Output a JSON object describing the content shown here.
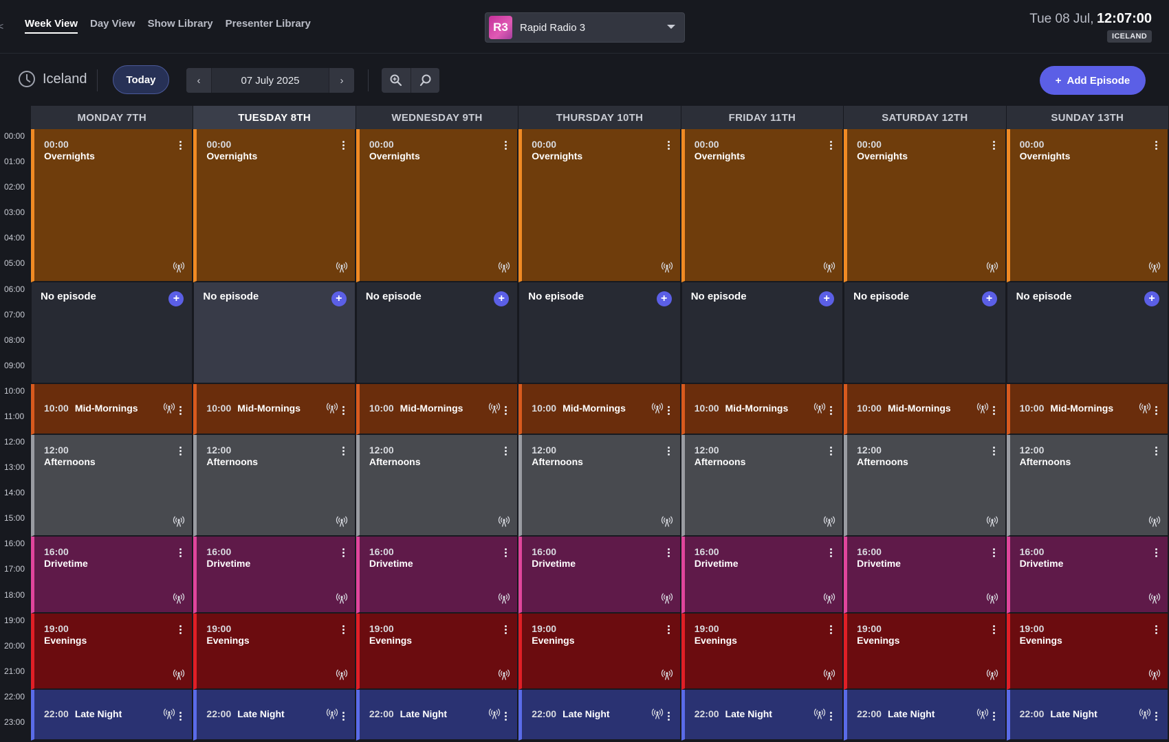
{
  "nav": {
    "edge_mark": "<",
    "tabs": [
      {
        "label": "Week View",
        "active": true
      },
      {
        "label": "Day View",
        "active": false
      },
      {
        "label": "Show Library",
        "active": false
      },
      {
        "label": "Presenter Library",
        "active": false
      }
    ]
  },
  "station": {
    "badge": "R3",
    "name": "Rapid Radio 3"
  },
  "clock": {
    "date": "Tue 08 Jul,",
    "time": "12:07:00",
    "timezone": "ICELAND"
  },
  "toolbar": {
    "timezone_label": "Iceland",
    "today_label": "Today",
    "date": "07 July 2025",
    "prev_icon": "‹",
    "next_icon": "›",
    "add_episode_label": "Add Episode",
    "add_icon": "+"
  },
  "calendar": {
    "hours": [
      "00:00",
      "01:00",
      "02:00",
      "03:00",
      "04:00",
      "05:00",
      "06:00",
      "07:00",
      "08:00",
      "09:00",
      "10:00",
      "11:00",
      "12:00",
      "13:00",
      "14:00",
      "15:00",
      "16:00",
      "17:00",
      "18:00",
      "19:00",
      "20:00",
      "21:00",
      "22:00",
      "23:00"
    ],
    "days": [
      {
        "label": "MONDAY 7TH",
        "today": false
      },
      {
        "label": "TUESDAY 8TH",
        "today": true
      },
      {
        "label": "WEDNESDAY 9TH",
        "today": false
      },
      {
        "label": "THURSDAY 10TH",
        "today": false
      },
      {
        "label": "FRIDAY 11TH",
        "today": false
      },
      {
        "label": "SATURDAY 12TH",
        "today": false
      },
      {
        "label": "SUNDAY 13TH",
        "today": false
      }
    ],
    "empty_label": "No episode",
    "slots": [
      {
        "time": "00:00",
        "title": "Overnights",
        "start_hour": 0,
        "end_hour": 6,
        "layout": "tall",
        "color": "#6f3d0c",
        "accent": "#f08a24",
        "empty": false
      },
      {
        "time": "",
        "title": "",
        "start_hour": 6,
        "end_hour": 10,
        "layout": "empty",
        "color": "#272a33",
        "accent": "#272a33",
        "empty": true
      },
      {
        "time": "10:00",
        "title": "Mid-Mornings",
        "start_hour": 10,
        "end_hour": 12,
        "layout": "row",
        "color": "#6a2d0c",
        "accent": "#d85a1e",
        "empty": false
      },
      {
        "time": "12:00",
        "title": "Afternoons",
        "start_hour": 12,
        "end_hour": 16,
        "layout": "tall",
        "color": "#484a4f",
        "accent": "#9a9ca2",
        "empty": false
      },
      {
        "time": "16:00",
        "title": "Drivetime",
        "start_hour": 16,
        "end_hour": 19,
        "layout": "tall",
        "color": "#5f1a49",
        "accent": "#e0459c",
        "empty": false
      },
      {
        "time": "19:00",
        "title": "Evenings",
        "start_hour": 19,
        "end_hour": 22,
        "layout": "tall",
        "color": "#6b0c0f",
        "accent": "#e01f26",
        "empty": false
      },
      {
        "time": "22:00",
        "title": "Late Night",
        "start_hour": 22,
        "end_hour": 24,
        "layout": "row",
        "color": "#2a3272",
        "accent": "#5a6be8",
        "empty": false
      }
    ]
  }
}
